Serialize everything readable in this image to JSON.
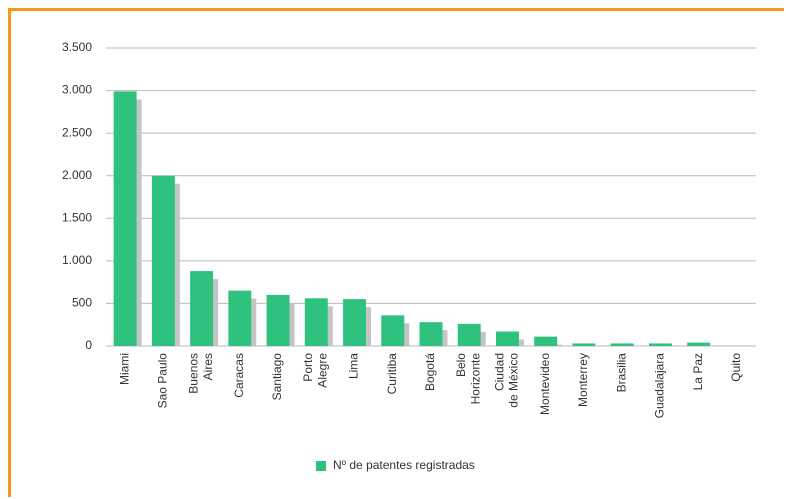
{
  "chart_data": {
    "type": "bar",
    "categories": [
      "Miami",
      "Sao Paulo",
      "Buenos\nAires",
      "Caracas",
      "Santiago",
      "Porto\nAlegre",
      "Lima",
      "Curitiba",
      "Bogotá",
      "Belo\nHorizonte",
      "Ciudad\nde México",
      "Montevideo",
      "Monterrey",
      "Brasilia",
      "Guadalajara",
      "La Paz",
      "Quito"
    ],
    "series": [
      {
        "name": "Nº de patentes registradas",
        "color": "#2ec27e",
        "values": [
          2990,
          2000,
          880,
          650,
          600,
          560,
          550,
          360,
          280,
          260,
          170,
          110,
          30,
          30,
          30,
          40,
          0
        ]
      }
    ],
    "ylim": [
      0,
      3500
    ],
    "yticks": [
      0,
      {
        "value": 500,
        "label": "500"
      },
      {
        "value": 1000,
        "label": "1.000"
      },
      {
        "value": 1500,
        "label": "1.500"
      },
      {
        "value": 2000,
        "label": "2.000"
      },
      {
        "value": 2500,
        "label": "2.500"
      },
      {
        "value": 3000,
        "label": "3.000"
      },
      {
        "value": 3500,
        "label": "3.500"
      }
    ],
    "grid": true
  }
}
